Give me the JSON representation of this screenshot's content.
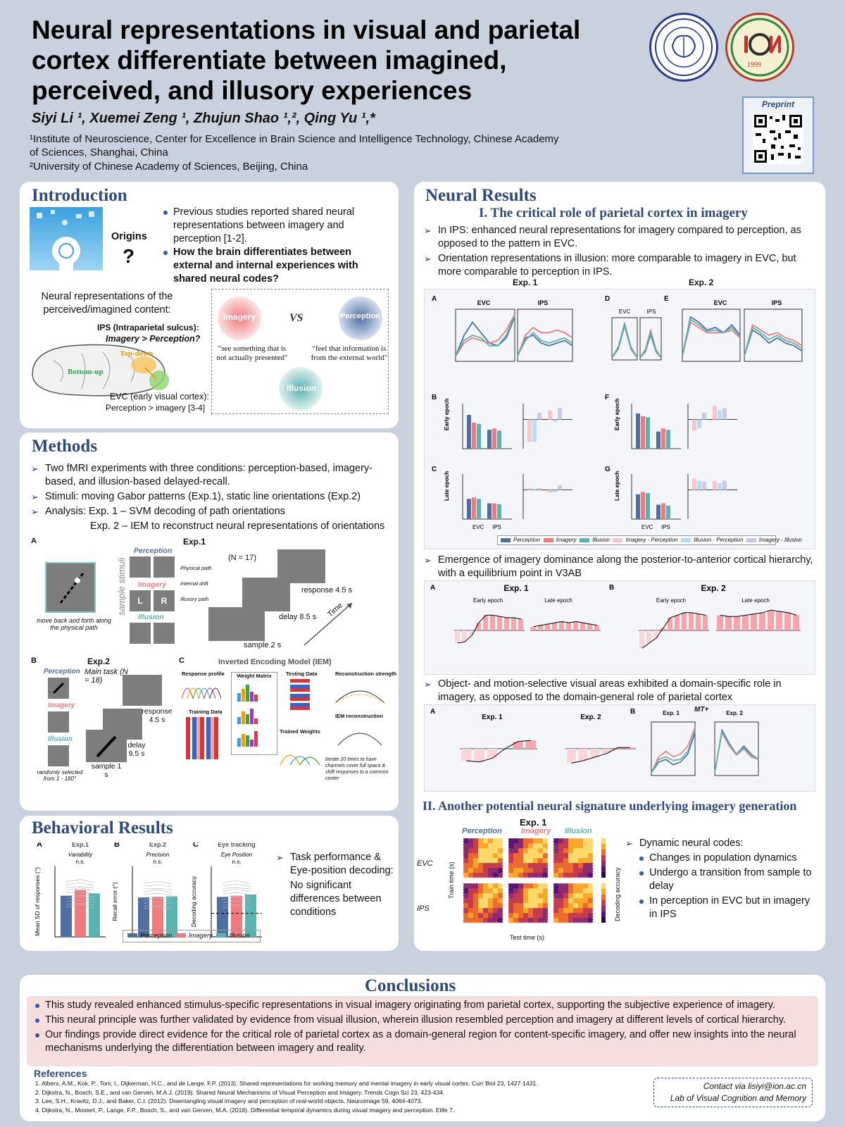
{
  "header": {
    "title": "Neural representations in visual and parietal cortex differentiate between imagined, perceived, and illusory experiences",
    "authors": "Siyi Li ¹, Xuemei Zeng ¹, Zhujun Shao ¹,², Qing Yu ¹,*",
    "affiliation1": "¹Institute of Neuroscience, Center for Excellence in Brain Science and Intelligence Technology, Chinese Academy of Sciences, Shanghai, China",
    "affiliation2": "²University of Chinese Academy of Sciences, Beijing, China",
    "preprint_label": "Preprint",
    "logo2_year": "1999"
  },
  "introduction": {
    "heading": "Introduction",
    "origins": "Origins",
    "question_mark": "?",
    "bullet1": "Previous studies reported shared neural representations between imagery and perception [1-2].",
    "bullet2": "How the brain differentiates between external and internal experiences with shared neural codes?",
    "neural_rep": "Neural representations of the perceived/imagined content:",
    "ips_line": "IPS (Intraparietal sulcus):",
    "ips_q": "Imagery > Perception?",
    "topdown": "Top-down",
    "bottomup": "Bottom-up",
    "evc_line": "EVC (early visual cortex):",
    "evc_val": "Perception > imagery [3-4]",
    "imagery": "Imagery",
    "vs": "VS",
    "perception": "Perception",
    "illusion": "Illusion",
    "quote1": "\"see something that is not actually presented\"",
    "quote2": "\"feel that information is from the external world\""
  },
  "methods": {
    "heading": "Methods",
    "item1": "Two fMRI experiments with three conditions: perception-based, imagery-based, and illusion-based delayed-recall.",
    "item2": "Stimuli: moving Gabor patterns (Exp.1), static line orientations (Exp.2)",
    "item3": "Analysis: Exp. 1 – SVM decoding of path orientations",
    "item3b": "Exp. 2 – IEM to reconstruct neural representations of orientations",
    "figA": "A",
    "figB": "B",
    "figC": "C",
    "exp1": "Exp.1",
    "exp2": "Exp.2",
    "n17": "(N = 17)",
    "n18": "Main task (N = 18)",
    "response45": "response 4.5 s",
    "delay85": "delay 8.5 s",
    "sample2": "sample 2 s",
    "time": "Time",
    "perc": "Perception",
    "imag": "Imagery",
    "illu": "Illusion",
    "sample_stimuli": "sample stimuli",
    "physical_path": "Physical path",
    "internal_drift": "Internal drift",
    "illusory_path": "Illusory path",
    "move_note": "move back and forth along the physical path",
    "L": "L",
    "R": "R",
    "response2": "response 4.5 s",
    "delay2": "delay 9.5 s",
    "sample1": "sample 1 s",
    "random_note": "randomly selected from 1 - 180°",
    "iem_title": "Inverted Encoding Model (IEM)",
    "response_profile": "Response profile",
    "weight_matrix": "Weight Matrix",
    "testing_data": "Testing Data",
    "training_data": "Training Data",
    "trained_weights": "Trained Weights",
    "recon_strength": "Reconstruction strength",
    "iem_recon": "IEM reconstruction",
    "iem_note": "iterate 20 times to have channels cover full space & shift responses to a common center"
  },
  "behavioral": {
    "heading": "Behavioral Results",
    "panelA": "A",
    "panelB": "B",
    "panelC": "C",
    "exp1": "Exp.1",
    "exp2": "Exp.2",
    "eye": "Eye tracking",
    "varA": "Variability",
    "varB": "Precision",
    "varC": "Eye Position",
    "ns": "n.s.",
    "ylabelA": "Mean SD of responses (°)",
    "ylabelB": "Recall error (°)",
    "ylabelC": "Decoding accuracy",
    "legend": [
      "Perception",
      "Imagery",
      "Illusion"
    ],
    "summary1": "Task performance & Eye-position decoding:",
    "summary2": "No significant differences between conditions"
  },
  "neural": {
    "heading": "Neural Results",
    "section1": "I. The critical role of parietal cortex in imagery",
    "bullet1": "In IPS: enhanced neural representations for imagery compared to perception, as opposed to the pattern in EVC.",
    "bullet2": "Orientation representations in illusion: more comparable to imagery in EVC, but more comparable to perception in IPS.",
    "exp1": "Exp. 1",
    "exp2": "Exp. 2",
    "evc": "EVC",
    "ips": "IPS",
    "early_epoch": "Early epoch",
    "late_epoch": "Late epoch",
    "legend": [
      "Perception",
      "Imagery",
      "Illusion",
      "Imagery - Perception",
      "Illusion - Perception",
      "Imagery - Illusion"
    ],
    "bullet3": "Emergence of imagery dominance along the posterior-to-anterior cortical hierarchy, with a equilibrium point in V3AB",
    "bullet4": "Object- and motion-selective visual areas exhibited a domain-specific role in imagery, as opposed to the domain-general role of parietal cortex",
    "mt": "MT+",
    "section2": "II. Another potential neural signature underlying imagery generation",
    "dyn_exp": "Exp. 1",
    "dyn_cond": [
      "Perception",
      "Imagery",
      "Illusion"
    ],
    "train_time": "Train time (s)",
    "test_time": "Test time (s)",
    "decoding_accuracy": "Decoding accuracy",
    "dynamic": "Dynamic neural codes:",
    "dyn1": "Changes in population dynamics",
    "dyn2": "Undergo a transition from sample to delay",
    "dyn3": "In perception in EVC but in imagery in IPS"
  },
  "conclusions": {
    "heading": "Conclusions",
    "c1": "This study revealed enhanced stimulus-specific representations in visual imagery originating from parietal cortex, supporting the subjective experience of imagery.",
    "c2": "This neural principle was further validated by evidence from visual illusion, wherein illusion resembled perception and imagery at different levels of cortical hierarchy.",
    "c3": "Our findings provide direct evidence for the critical role of parietal cortex as a domain-general region for content-specific imagery, and offer new insights into the neural mechanisms underlying the differentiation between imagery and reality."
  },
  "references": {
    "heading": "References",
    "r1": "1. Albers, A.M., Kok, P., Toni, I., Dijkerman, H.C., and de Lange, F.P. (2013). Shared representations for working memory and mental imagery in early visual cortex. Curr Biol 23, 1427-1431.",
    "r2": "2. Dijkstra, N., Bosch, S.E., and van Gerven, M.A.J. (2019). Shared Neural Mechanisms of Visual Perception and Imagery. Trends Cogn Sci 23, 423-434.",
    "r3": "3. Lee, S.H., Kravitz, D.J., and Baker, C.I. (2012). Disentangling visual imagery and perception of real-world objects. Neuroimage 59, 4064-4073.",
    "r4": "4. Dijkstra, N., Mostert, P., Lange, F.P., Bosch, S., and van Gerven, M.A. (2018). Differential temporal dynamics during visual imagery and perception. Elife 7.",
    "contact": "Contact via lisiyi@ion.ac.cn",
    "lab": "Lab of Visual Cognition and Memory"
  },
  "colors": {
    "perception": "#4f6fa0",
    "imagery": "#f07a7e",
    "illusion": "#59b3ae",
    "heading": "#2e4a7b"
  }
}
